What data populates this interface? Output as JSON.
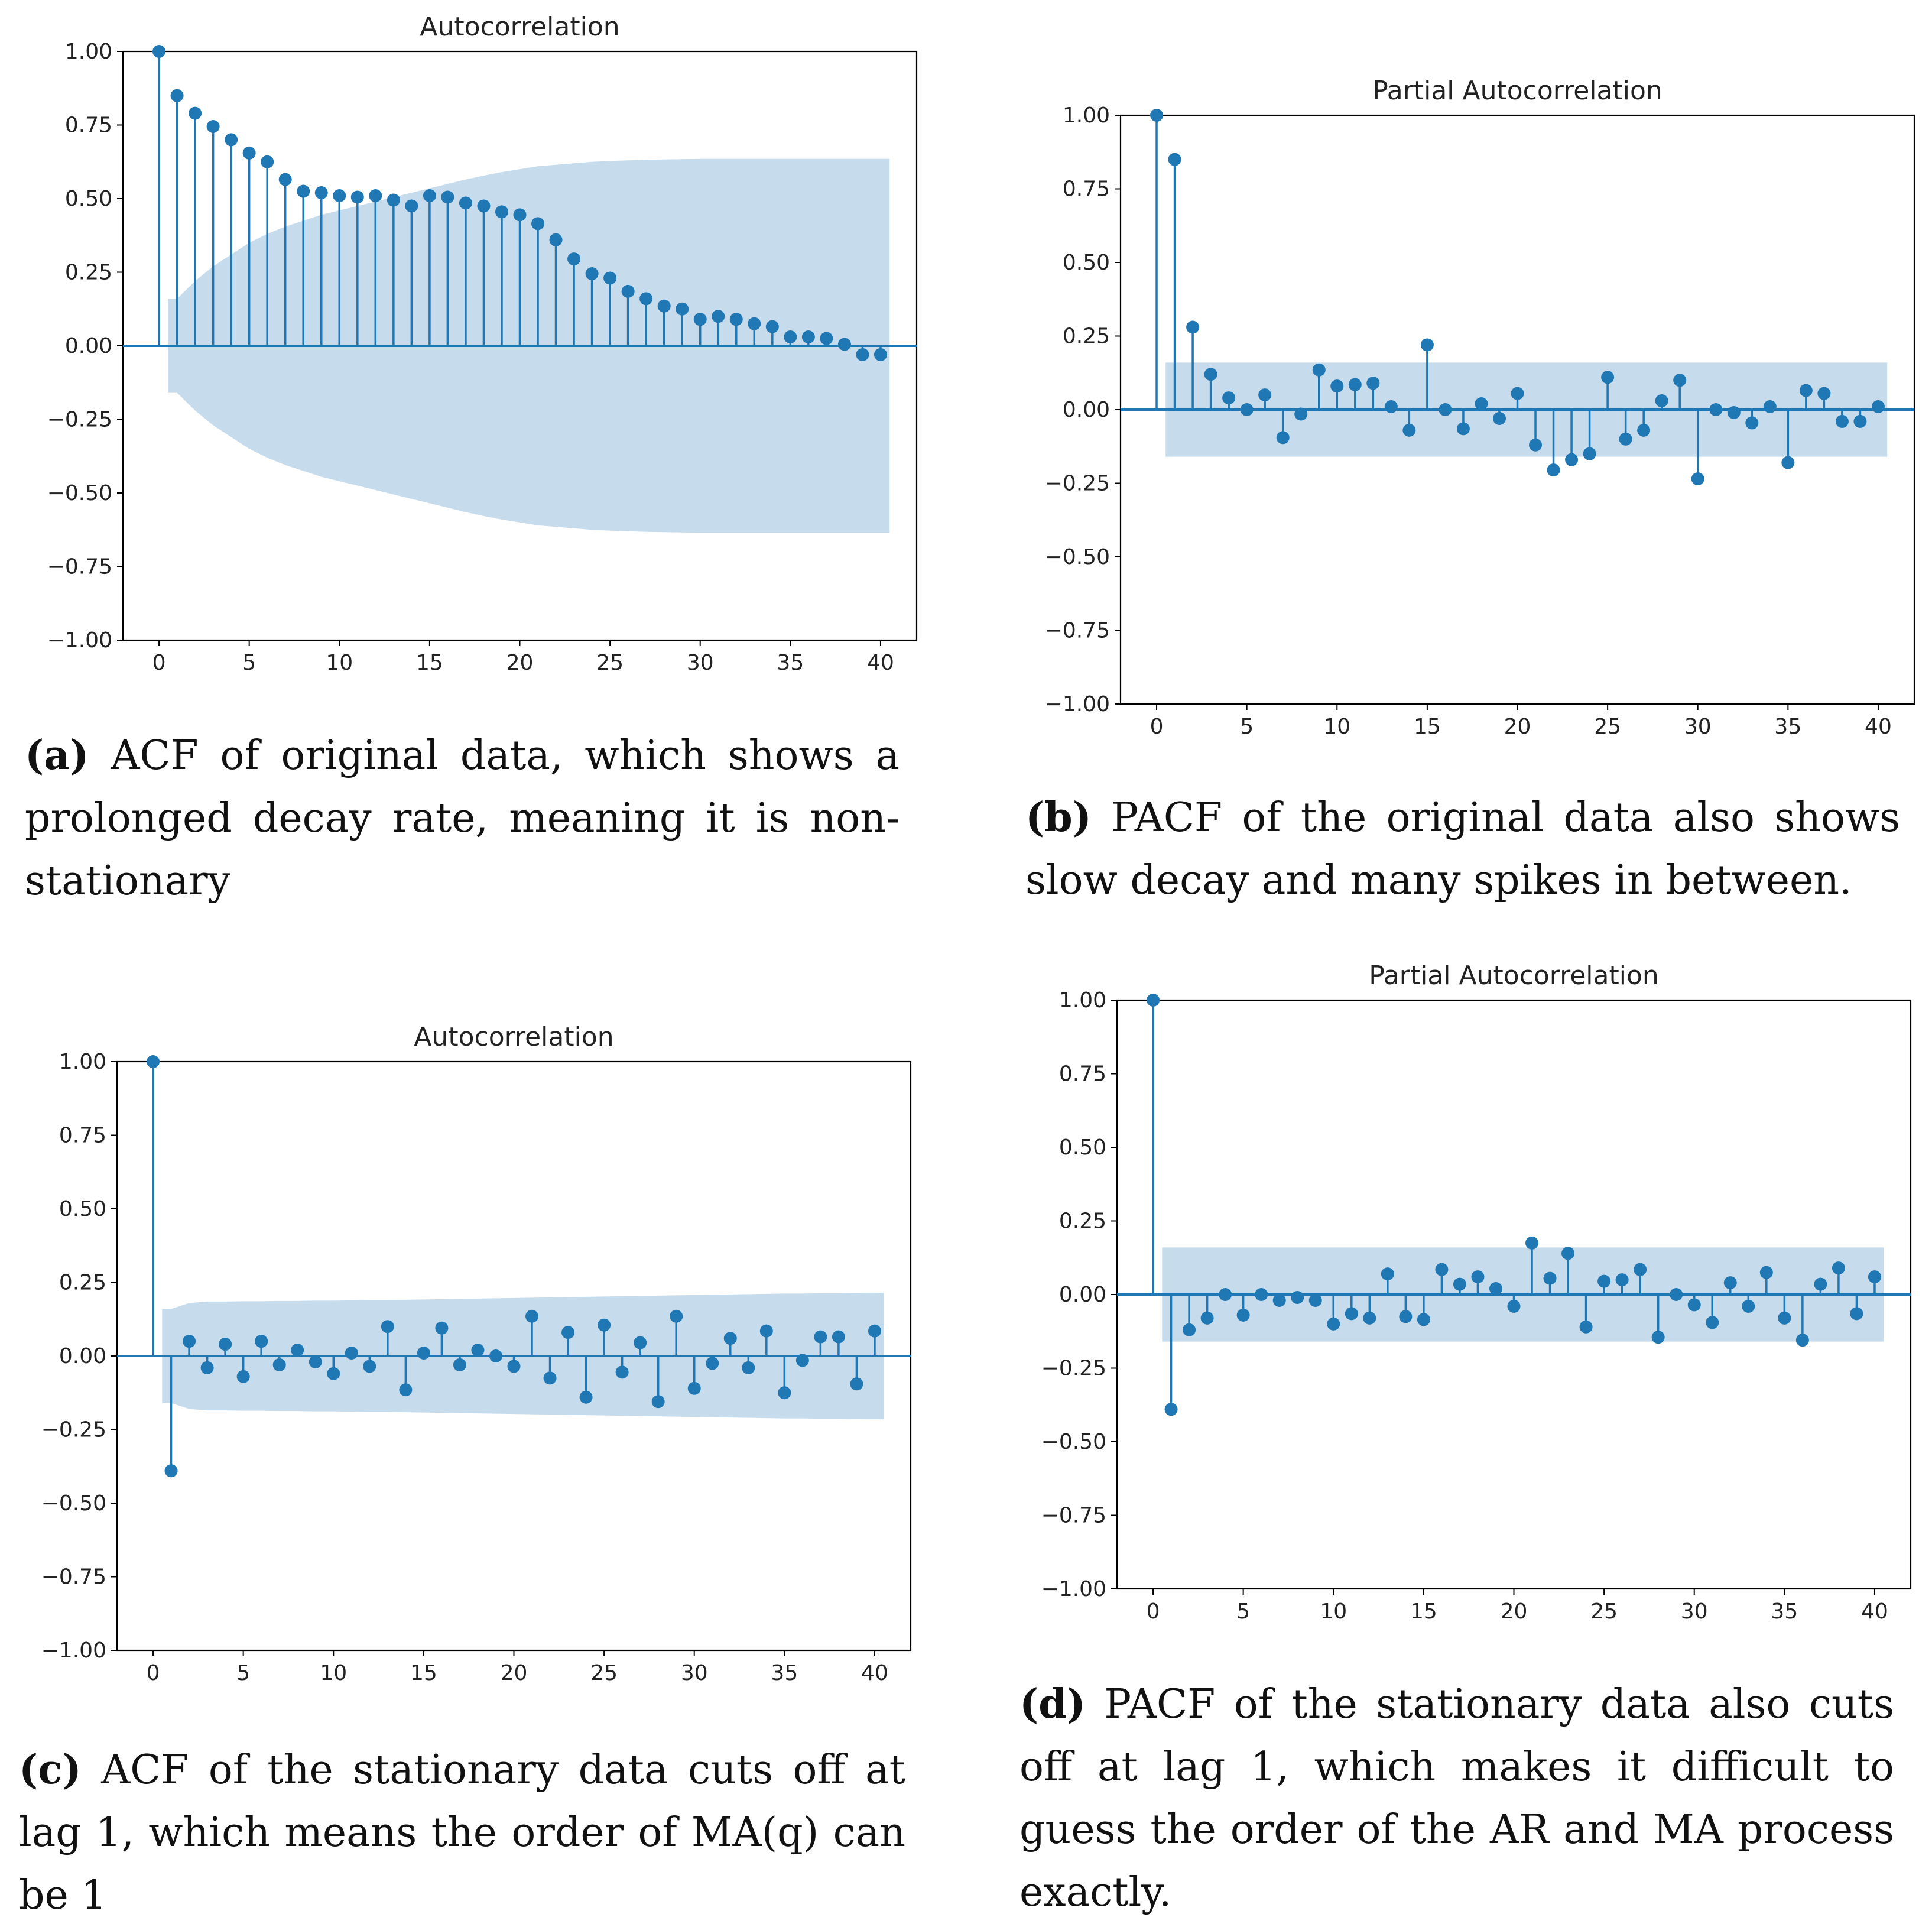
{
  "colors": {
    "stem": "#1f77b4",
    "band": "#c6dbec",
    "axis": "#000000"
  },
  "chart_data": [
    {
      "id": "a",
      "type": "stem",
      "title": "Autocorrelation",
      "xlabel": "",
      "ylabel": "",
      "xlim": [
        -2,
        42
      ],
      "ylim": [
        -1.0,
        1.0
      ],
      "xticks": [
        0,
        5,
        10,
        15,
        20,
        25,
        30,
        35,
        40
      ],
      "xtick_labels": [
        "0",
        "5",
        "10",
        "15",
        "20",
        "25",
        "30",
        "35",
        "40"
      ],
      "yticks": [
        -1.0,
        -0.75,
        -0.5,
        -0.25,
        0.0,
        0.25,
        0.5,
        0.75,
        1.0
      ],
      "ytick_labels": [
        "−1.00",
        "−0.75",
        "−0.50",
        "−0.25",
        "0.00",
        "0.25",
        "0.50",
        "0.75",
        "1.00"
      ],
      "values": [
        1.0,
        0.85,
        0.79,
        0.745,
        0.7,
        0.655,
        0.625,
        0.565,
        0.525,
        0.52,
        0.51,
        0.505,
        0.51,
        0.495,
        0.475,
        0.51,
        0.505,
        0.485,
        0.475,
        0.455,
        0.445,
        0.415,
        0.36,
        0.295,
        0.245,
        0.23,
        0.185,
        0.16,
        0.135,
        0.125,
        0.09,
        0.1,
        0.09,
        0.075,
        0.065,
        0.03,
        0.03,
        0.025,
        0.005,
        -0.03,
        -0.03
      ],
      "confint_upper": [
        null,
        0.16,
        0.22,
        0.27,
        0.31,
        0.35,
        0.38,
        0.405,
        0.425,
        0.445,
        0.46,
        0.475,
        0.49,
        0.505,
        0.52,
        0.535,
        0.55,
        0.565,
        0.578,
        0.59,
        0.6,
        0.61,
        0.615,
        0.62,
        0.625,
        0.628,
        0.63,
        0.632,
        0.633,
        0.634,
        0.635,
        0.635,
        0.635,
        0.635,
        0.635,
        0.635,
        0.635,
        0.635,
        0.635,
        0.635,
        0.635
      ],
      "band_start": 0.5,
      "band_end": 40.5
    },
    {
      "id": "b",
      "type": "stem",
      "title": "Partial Autocorrelation",
      "xlabel": "",
      "ylabel": "",
      "xlim": [
        -2,
        42
      ],
      "ylim": [
        -1.0,
        1.0
      ],
      "xticks": [
        0,
        5,
        10,
        15,
        20,
        25,
        30,
        35,
        40
      ],
      "xtick_labels": [
        "0",
        "5",
        "10",
        "15",
        "20",
        "25",
        "30",
        "35",
        "40"
      ],
      "yticks": [
        -1.0,
        -0.75,
        -0.5,
        -0.25,
        0.0,
        0.25,
        0.5,
        0.75,
        1.0
      ],
      "ytick_labels": [
        "−1.00",
        "−0.75",
        "−0.50",
        "−0.25",
        "0.00",
        "0.25",
        "0.50",
        "0.75",
        "1.00"
      ],
      "values": [
        1.0,
        0.85,
        0.28,
        0.12,
        0.04,
        0.0,
        0.05,
        -0.095,
        -0.015,
        0.135,
        0.08,
        0.085,
        0.09,
        0.01,
        -0.07,
        0.22,
        0.0,
        -0.065,
        0.02,
        -0.03,
        0.055,
        -0.12,
        -0.205,
        -0.17,
        -0.15,
        0.11,
        -0.1,
        -0.07,
        0.03,
        0.1,
        -0.235,
        0.0,
        -0.01,
        -0.045,
        0.01,
        -0.18,
        0.065,
        0.055,
        -0.04,
        -0.04,
        0.01
      ],
      "confint_upper": 0.16,
      "band_start": 0.5,
      "band_end": 40.5
    },
    {
      "id": "c",
      "type": "stem",
      "title": "Autocorrelation",
      "xlabel": "",
      "ylabel": "",
      "xlim": [
        -2,
        42
      ],
      "ylim": [
        -1.0,
        1.0
      ],
      "xticks": [
        0,
        5,
        10,
        15,
        20,
        25,
        30,
        35,
        40
      ],
      "xtick_labels": [
        "0",
        "5",
        "10",
        "15",
        "20",
        "25",
        "30",
        "35",
        "40"
      ],
      "yticks": [
        -1.0,
        -0.75,
        -0.5,
        -0.25,
        0.0,
        0.25,
        0.5,
        0.75,
        1.0
      ],
      "ytick_labels": [
        "−1.00",
        "−0.75",
        "−0.50",
        "−0.25",
        "0.00",
        "0.25",
        "0.50",
        "0.75",
        "1.00"
      ],
      "values": [
        1.0,
        -0.39,
        0.05,
        -0.04,
        0.04,
        -0.07,
        0.05,
        -0.03,
        0.02,
        -0.02,
        -0.06,
        0.01,
        -0.035,
        0.1,
        -0.115,
        0.01,
        0.095,
        -0.03,
        0.02,
        0.0,
        -0.035,
        0.135,
        -0.075,
        0.08,
        -0.14,
        0.105,
        -0.055,
        0.045,
        -0.155,
        0.135,
        -0.11,
        -0.025,
        0.06,
        -0.04,
        0.085,
        -0.125,
        -0.015,
        0.065,
        0.065,
        -0.095,
        0.085
      ],
      "confint_upper": [
        null,
        0.16,
        0.18,
        0.185,
        0.185,
        0.186,
        0.186,
        0.187,
        0.187,
        0.188,
        0.188,
        0.189,
        0.19,
        0.19,
        0.191,
        0.192,
        0.193,
        0.194,
        0.195,
        0.196,
        0.197,
        0.198,
        0.199,
        0.2,
        0.201,
        0.202,
        0.203,
        0.204,
        0.205,
        0.206,
        0.207,
        0.208,
        0.209,
        0.21,
        0.211,
        0.212,
        0.212,
        0.213,
        0.213,
        0.214,
        0.215
      ],
      "band_start": 0.5,
      "band_end": 40.5
    },
    {
      "id": "d",
      "type": "stem",
      "title": "Partial Autocorrelation",
      "xlabel": "",
      "ylabel": "",
      "xlim": [
        -2,
        42
      ],
      "ylim": [
        -1.0,
        1.0
      ],
      "xticks": [
        0,
        5,
        10,
        15,
        20,
        25,
        30,
        35,
        40
      ],
      "xtick_labels": [
        "0",
        "5",
        "10",
        "15",
        "20",
        "25",
        "30",
        "35",
        "40"
      ],
      "yticks": [
        -1.0,
        -0.75,
        -0.5,
        -0.25,
        0.0,
        0.25,
        0.5,
        0.75,
        1.0
      ],
      "ytick_labels": [
        "−1.00",
        "−0.75",
        "−0.50",
        "−0.25",
        "0.00",
        "0.25",
        "0.50",
        "0.75",
        "1.00"
      ],
      "values": [
        1.0,
        -0.39,
        -0.12,
        -0.08,
        0.0,
        -0.07,
        0.0,
        -0.02,
        -0.01,
        -0.02,
        -0.1,
        -0.065,
        -0.08,
        0.07,
        -0.075,
        -0.085,
        0.085,
        0.035,
        0.06,
        0.02,
        -0.04,
        0.175,
        0.055,
        0.14,
        -0.11,
        0.045,
        0.05,
        0.085,
        -0.145,
        0.0,
        -0.035,
        -0.095,
        0.04,
        -0.04,
        0.075,
        -0.08,
        -0.155,
        0.035,
        0.09,
        -0.065,
        0.06
      ],
      "confint_upper": 0.16,
      "band_start": 0.5,
      "band_end": 40.5
    }
  ],
  "captions": {
    "a": {
      "label": "(a)",
      "text": "ACF of original data, which shows a prolonged decay rate, meaning it is non-stationary"
    },
    "b": {
      "label": "(b)",
      "text": "PACF of the original data also shows slow decay and many spikes in between."
    },
    "c": {
      "label": "(c)",
      "text": "ACF of the stationary data cuts off at lag 1, which means the order of MA(q) can be 1"
    },
    "d": {
      "label": "(d)",
      "text": "PACF of the stationary data also cuts off at lag 1, which makes it difficult to guess the order of the AR and MA process exactly."
    }
  }
}
